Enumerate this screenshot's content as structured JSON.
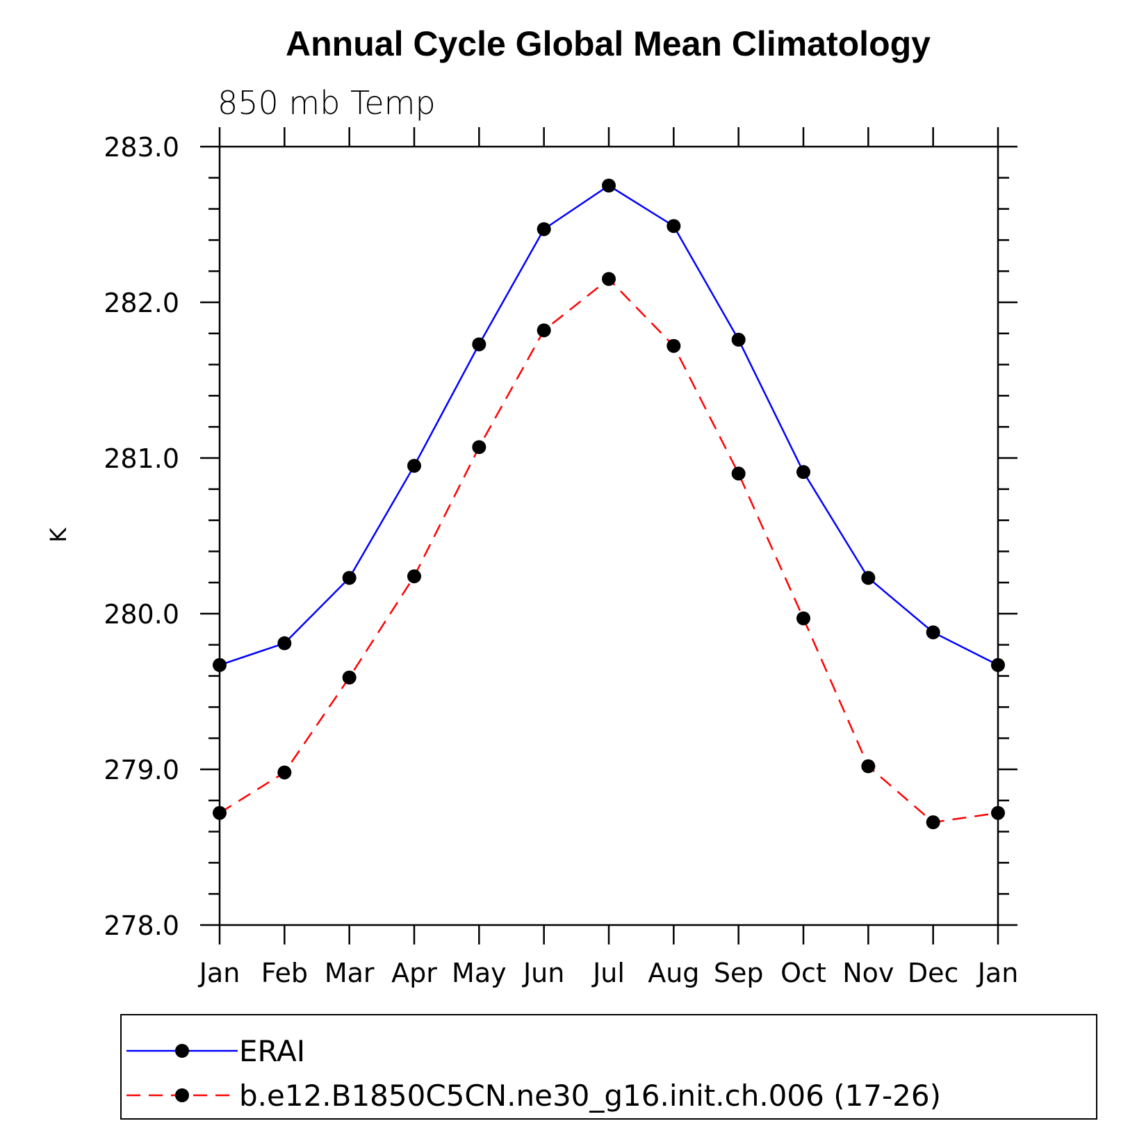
{
  "chart_data": {
    "type": "line",
    "title": "Annual Cycle Global Mean Climatology",
    "subtitle": "850 mb Temp",
    "ylabel": "K",
    "xlabel": "",
    "ylim": [
      278.0,
      283.0
    ],
    "ytick_labels": [
      "278.0",
      "279.0",
      "280.0",
      "281.0",
      "282.0",
      "283.0"
    ],
    "categories": [
      "Jan",
      "Feb",
      "Mar",
      "Apr",
      "May",
      "Jun",
      "Jul",
      "Aug",
      "Sep",
      "Oct",
      "Nov",
      "Dec",
      "Jan"
    ],
    "series": [
      {
        "name": "ERAI",
        "color": "#0000ff",
        "style": "solid",
        "marker": "filled-circle",
        "values": [
          279.67,
          279.81,
          280.23,
          280.95,
          281.73,
          282.47,
          282.75,
          282.49,
          281.76,
          280.91,
          280.23,
          279.88,
          279.67
        ]
      },
      {
        "name": "b.e12.B1850C5CN.ne30_g16.init.ch.006 (17-26)",
        "color": "#ff0000",
        "style": "dashed",
        "marker": "filled-circle",
        "values": [
          278.72,
          278.98,
          279.59,
          280.24,
          281.07,
          281.82,
          282.15,
          281.72,
          280.9,
          279.97,
          279.02,
          278.66,
          278.72
        ]
      }
    ],
    "grid": false,
    "legend_position": "bottom"
  }
}
